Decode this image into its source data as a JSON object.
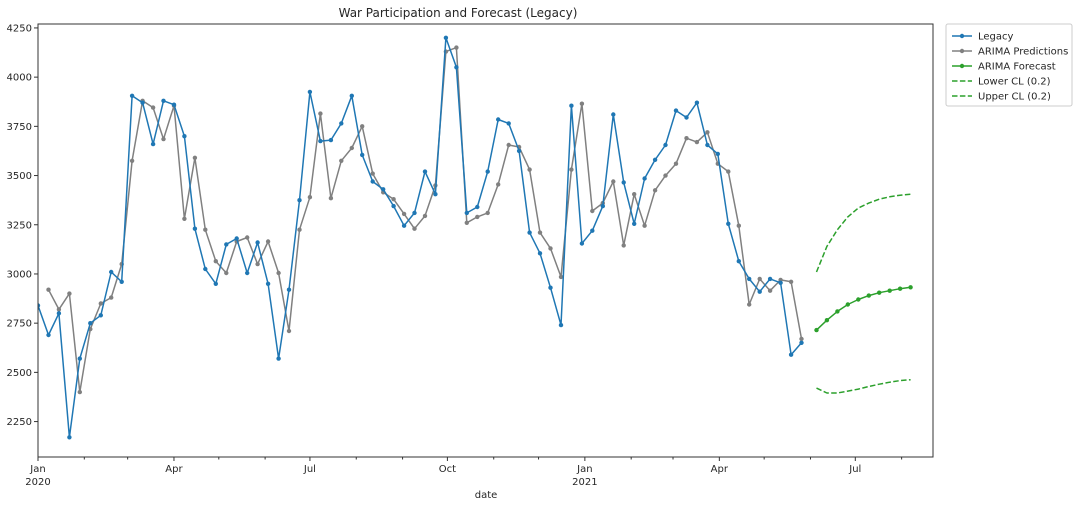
{
  "chart_data": {
    "type": "line",
    "title": "War Participation and Forecast (Legacy)",
    "xlabel": "date",
    "ylabel": "",
    "x_axis": {
      "type": "date",
      "range": [
        "2020-01-01",
        "2021-08-22"
      ],
      "tick_labels": [
        {
          "date": "2020-01-01",
          "label": "Jan",
          "sublabel": "2020"
        },
        {
          "date": "2020-04-01",
          "label": "Apr",
          "sublabel": ""
        },
        {
          "date": "2020-07-01",
          "label": "Jul",
          "sublabel": ""
        },
        {
          "date": "2020-10-01",
          "label": "Oct",
          "sublabel": ""
        },
        {
          "date": "2021-01-01",
          "label": "Jan",
          "sublabel": "2021"
        },
        {
          "date": "2021-04-01",
          "label": "Apr",
          "sublabel": ""
        },
        {
          "date": "2021-07-01",
          "label": "Jul",
          "sublabel": ""
        }
      ]
    },
    "y_axis": {
      "range": [
        2070,
        4270
      ],
      "ticks": [
        2250,
        2500,
        2750,
        3000,
        3250,
        3500,
        3750,
        4000,
        4250
      ]
    },
    "grid": false,
    "legend_position": "outside-top-right",
    "series": [
      {
        "name": "Legacy",
        "color": "#1f77b4",
        "style": "solid",
        "marker": true,
        "start": "2020-01-01",
        "step_days": 7,
        "values": [
          2840,
          2690,
          2800,
          2170,
          2570,
          2750,
          2790,
          3010,
          2960,
          3905,
          3870,
          3660,
          3880,
          3860,
          3700,
          3230,
          3025,
          2950,
          3150,
          3180,
          3005,
          3160,
          2950,
          2570,
          2920,
          3375,
          3925,
          3675,
          3680,
          3765,
          3905,
          3605,
          3470,
          3430,
          3345,
          3245,
          3310,
          3520,
          3405,
          4200,
          4050,
          3310,
          3340,
          3520,
          3785,
          3765,
          3625,
          3210,
          3105,
          2930,
          2740,
          3855,
          3155,
          3220,
          3345,
          3810,
          3465,
          3255,
          3485,
          3580,
          3655,
          3830,
          3795,
          3870,
          3655,
          3610,
          3255,
          3065,
          2975,
          2910,
          2975,
          2955,
          2590,
          2650
        ]
      },
      {
        "name": "ARIMA Predictions",
        "color": "#808080",
        "style": "solid",
        "marker": true,
        "start": "2020-01-08",
        "step_days": 7,
        "values": [
          2920,
          2820,
          2900,
          2400,
          2720,
          2850,
          2880,
          3050,
          3575,
          3880,
          3845,
          3685,
          3855,
          3280,
          3590,
          3225,
          3065,
          3005,
          3165,
          3185,
          3050,
          3165,
          3005,
          2710,
          3225,
          3390,
          3815,
          3385,
          3575,
          3640,
          3750,
          3510,
          3415,
          3380,
          3305,
          3230,
          3295,
          3450,
          4130,
          4150,
          3260,
          3290,
          3310,
          3455,
          3655,
          3645,
          3530,
          3210,
          3130,
          2985,
          3530,
          3865,
          3320,
          3360,
          3470,
          3145,
          3405,
          3245,
          3425,
          3500,
          3560,
          3690,
          3670,
          3720,
          3560,
          3520,
          3245,
          2845,
          2975,
          2915,
          2970,
          2960,
          2670
        ]
      },
      {
        "name": "ARIMA Forecast",
        "color": "#2ca02c",
        "style": "solid",
        "marker": true,
        "start": "2021-06-05",
        "step_days": 7,
        "values": [
          2715,
          2765,
          2810,
          2845,
          2870,
          2890,
          2905,
          2915,
          2925,
          2932
        ]
      },
      {
        "name": "Lower CL (0.2)",
        "color": "#2ca02c",
        "style": "dashed",
        "marker": false,
        "start": "2021-06-05",
        "step_days": 7,
        "values": [
          2420,
          2395,
          2395,
          2405,
          2415,
          2428,
          2440,
          2450,
          2458,
          2463
        ]
      },
      {
        "name": "Upper CL (0.2)",
        "color": "#2ca02c",
        "style": "dashed",
        "marker": false,
        "start": "2021-06-05",
        "step_days": 7,
        "values": [
          3010,
          3140,
          3225,
          3290,
          3335,
          3360,
          3380,
          3392,
          3400,
          3405
        ]
      }
    ]
  }
}
